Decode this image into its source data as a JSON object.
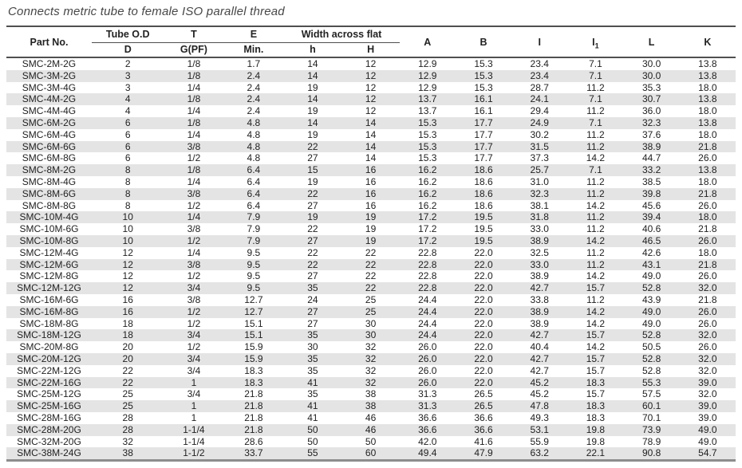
{
  "title": "Connects metric tube to female ISO parallel thread",
  "colors": {
    "row_stripe": "#e4e4e4",
    "rule_dark": "#4f4f4f",
    "rule_bottom": "#8d8d8d",
    "text": "#222222",
    "title_text": "#474747"
  },
  "table": {
    "header": {
      "part_no": "Part No.",
      "groups": [
        {
          "label": "Tube O.D",
          "children": [
            "D"
          ]
        },
        {
          "label": "T",
          "children": [
            "G(PF)"
          ]
        },
        {
          "label": "E",
          "children": [
            "Min."
          ]
        },
        {
          "label": "Width across flat",
          "children": [
            "h",
            "H"
          ]
        }
      ],
      "plain": [
        {
          "label": "A"
        },
        {
          "label": "B"
        },
        {
          "label": "I"
        },
        {
          "label": "I",
          "sub": "1"
        },
        {
          "label": "L"
        },
        {
          "label": "K"
        }
      ]
    },
    "rows": [
      [
        "SMC-2M-2G",
        "2",
        "1/8",
        "1.7",
        "14",
        "12",
        "12.9",
        "15.3",
        "23.4",
        "7.1",
        "30.0",
        "13.8"
      ],
      [
        "SMC-3M-2G",
        "3",
        "1/8",
        "2.4",
        "14",
        "12",
        "12.9",
        "15.3",
        "23.4",
        "7.1",
        "30.0",
        "13.8"
      ],
      [
        "SMC-3M-4G",
        "3",
        "1/4",
        "2.4",
        "19",
        "12",
        "12.9",
        "15.3",
        "28.7",
        "11.2",
        "35.3",
        "18.0"
      ],
      [
        "SMC-4M-2G",
        "4",
        "1/8",
        "2.4",
        "14",
        "12",
        "13.7",
        "16.1",
        "24.1",
        "7.1",
        "30.7",
        "13.8"
      ],
      [
        "SMC-4M-4G",
        "4",
        "1/4",
        "2.4",
        "19",
        "12",
        "13.7",
        "16.1",
        "29.4",
        "11.2",
        "36.0",
        "18.0"
      ],
      [
        "SMC-6M-2G",
        "6",
        "1/8",
        "4.8",
        "14",
        "14",
        "15.3",
        "17.7",
        "24.9",
        "7.1",
        "32.3",
        "13.8"
      ],
      [
        "SMC-6M-4G",
        "6",
        "1/4",
        "4.8",
        "19",
        "14",
        "15.3",
        "17.7",
        "30.2",
        "11.2",
        "37.6",
        "18.0"
      ],
      [
        "SMC-6M-6G",
        "6",
        "3/8",
        "4.8",
        "22",
        "14",
        "15.3",
        "17.7",
        "31.5",
        "11.2",
        "38.9",
        "21.8"
      ],
      [
        "SMC-6M-8G",
        "6",
        "1/2",
        "4.8",
        "27",
        "14",
        "15.3",
        "17.7",
        "37.3",
        "14.2",
        "44.7",
        "26.0"
      ],
      [
        "SMC-8M-2G",
        "8",
        "1/8",
        "6.4",
        "15",
        "16",
        "16.2",
        "18.6",
        "25.7",
        "7.1",
        "33.2",
        "13.8"
      ],
      [
        "SMC-8M-4G",
        "8",
        "1/4",
        "6.4",
        "19",
        "16",
        "16.2",
        "18.6",
        "31.0",
        "11.2",
        "38.5",
        "18.0"
      ],
      [
        "SMC-8M-6G",
        "8",
        "3/8",
        "6.4",
        "22",
        "16",
        "16.2",
        "18.6",
        "32.3",
        "11.2",
        "39.8",
        "21.8"
      ],
      [
        "SMC-8M-8G",
        "8",
        "1/2",
        "6.4",
        "27",
        "16",
        "16.2",
        "18.6",
        "38.1",
        "14.2",
        "45.6",
        "26.0"
      ],
      [
        "SMC-10M-4G",
        "10",
        "1/4",
        "7.9",
        "19",
        "19",
        "17.2",
        "19.5",
        "31.8",
        "11.2",
        "39.4",
        "18.0"
      ],
      [
        "SMC-10M-6G",
        "10",
        "3/8",
        "7.9",
        "22",
        "19",
        "17.2",
        "19.5",
        "33.0",
        "11.2",
        "40.6",
        "21.8"
      ],
      [
        "SMC-10M-8G",
        "10",
        "1/2",
        "7.9",
        "27",
        "19",
        "17.2",
        "19.5",
        "38.9",
        "14.2",
        "46.5",
        "26.0"
      ],
      [
        "SMC-12M-4G",
        "12",
        "1/4",
        "9.5",
        "22",
        "22",
        "22.8",
        "22.0",
        "32.5",
        "11.2",
        "42.6",
        "18.0"
      ],
      [
        "SMC-12M-6G",
        "12",
        "3/8",
        "9.5",
        "22",
        "22",
        "22.8",
        "22.0",
        "33.0",
        "11.2",
        "43.1",
        "21.8"
      ],
      [
        "SMC-12M-8G",
        "12",
        "1/2",
        "9.5",
        "27",
        "22",
        "22.8",
        "22.0",
        "38.9",
        "14.2",
        "49.0",
        "26.0"
      ],
      [
        "SMC-12M-12G",
        "12",
        "3/4",
        "9.5",
        "35",
        "22",
        "22.8",
        "22.0",
        "42.7",
        "15.7",
        "52.8",
        "32.0"
      ],
      [
        "SMC-16M-6G",
        "16",
        "3/8",
        "12.7",
        "24",
        "25",
        "24.4",
        "22.0",
        "33.8",
        "11.2",
        "43.9",
        "21.8"
      ],
      [
        "SMC-16M-8G",
        "16",
        "1/2",
        "12.7",
        "27",
        "25",
        "24.4",
        "22.0",
        "38.9",
        "14.2",
        "49.0",
        "26.0"
      ],
      [
        "SMC-18M-8G",
        "18",
        "1/2",
        "15.1",
        "27",
        "30",
        "24.4",
        "22.0",
        "38.9",
        "14.2",
        "49.0",
        "26.0"
      ],
      [
        "SMC-18M-12G",
        "18",
        "3/4",
        "15.1",
        "35",
        "30",
        "24.4",
        "22.0",
        "42.7",
        "15.7",
        "52.8",
        "32.0"
      ],
      [
        "SMC-20M-8G",
        "20",
        "1/2",
        "15.9",
        "30",
        "32",
        "26.0",
        "22.0",
        "40.4",
        "14.2",
        "50.5",
        "26.0"
      ],
      [
        "SMC-20M-12G",
        "20",
        "3/4",
        "15.9",
        "35",
        "32",
        "26.0",
        "22.0",
        "42.7",
        "15.7",
        "52.8",
        "32.0"
      ],
      [
        "SMC-22M-12G",
        "22",
        "3/4",
        "18.3",
        "35",
        "32",
        "26.0",
        "22.0",
        "42.7",
        "15.7",
        "52.8",
        "32.0"
      ],
      [
        "SMC-22M-16G",
        "22",
        "1",
        "18.3",
        "41",
        "32",
        "26.0",
        "22.0",
        "45.2",
        "18.3",
        "55.3",
        "39.0"
      ],
      [
        "SMC-25M-12G",
        "25",
        "3/4",
        "21.8",
        "35",
        "38",
        "31.3",
        "26.5",
        "45.2",
        "15.7",
        "57.5",
        "32.0"
      ],
      [
        "SMC-25M-16G",
        "25",
        "1",
        "21.8",
        "41",
        "38",
        "31.3",
        "26.5",
        "47.8",
        "18.3",
        "60.1",
        "39.0"
      ],
      [
        "SMC-28M-16G",
        "28",
        "1",
        "21.8",
        "41",
        "46",
        "36.6",
        "36.6",
        "49.3",
        "18.3",
        "70.1",
        "39.0"
      ],
      [
        "SMC-28M-20G",
        "28",
        "1-1/4",
        "21.8",
        "50",
        "46",
        "36.6",
        "36.6",
        "53.1",
        "19.8",
        "73.9",
        "49.0"
      ],
      [
        "SMC-32M-20G",
        "32",
        "1-1/4",
        "28.6",
        "50",
        "50",
        "42.0",
        "41.6",
        "55.9",
        "19.8",
        "78.9",
        "49.0"
      ],
      [
        "SMC-38M-24G",
        "38",
        "1-1/2",
        "33.7",
        "55",
        "60",
        "49.4",
        "47.9",
        "63.2",
        "22.1",
        "90.8",
        "54.7"
      ]
    ]
  }
}
